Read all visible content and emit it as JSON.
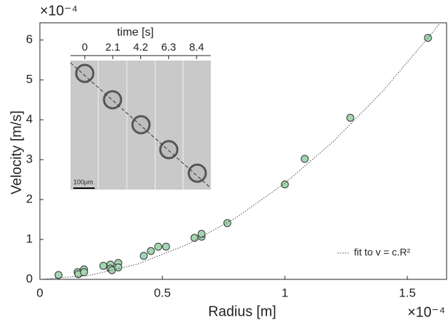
{
  "chart_data": {
    "type": "scatter",
    "x_label": "Radius [m]",
    "y_label": "Velocity [m/s]",
    "x_multiplier": "×10⁻⁴",
    "y_multiplier": "×10⁻⁴",
    "xlim": [
      0,
      1.66
    ],
    "ylim": [
      0,
      6.43
    ],
    "xticks": [
      0,
      0.5,
      1,
      1.5
    ],
    "yticks": [
      0,
      1,
      2,
      3,
      4,
      5,
      6
    ],
    "grid": false,
    "legend": "lower right",
    "series": [
      {
        "kind": "scatter",
        "color": "#a3d6b0",
        "x": [
          0.076,
          0.154,
          0.157,
          0.18,
          0.18,
          0.259,
          0.288,
          0.288,
          0.294,
          0.32,
          0.32,
          0.424,
          0.453,
          0.483,
          0.515,
          0.631,
          0.66,
          0.66,
          0.765,
          1.0,
          1.081,
          1.267,
          1.584
        ],
        "values": [
          0.11,
          0.18,
          0.13,
          0.25,
          0.18,
          0.34,
          0.37,
          0.27,
          0.23,
          0.41,
          0.3,
          0.59,
          0.71,
          0.82,
          0.82,
          1.04,
          1.07,
          1.14,
          1.41,
          2.38,
          3.02,
          4.05,
          6.05
        ]
      },
      {
        "kind": "line",
        "name": "fit to v = c.R²",
        "color": "#444444",
        "x": [
          0,
          0.2,
          0.4,
          0.6,
          0.8,
          1.0,
          1.2,
          1.4,
          1.6,
          1.63
        ],
        "values": [
          0,
          0.096,
          0.386,
          0.868,
          1.542,
          2.41,
          3.47,
          4.72,
          6.17,
          6.4
        ]
      }
    ],
    "inset": {
      "title": "time [s]",
      "ticks": [
        0,
        2.1,
        4.2,
        6.3,
        8.4
      ],
      "scale_bar": "100μm"
    }
  }
}
